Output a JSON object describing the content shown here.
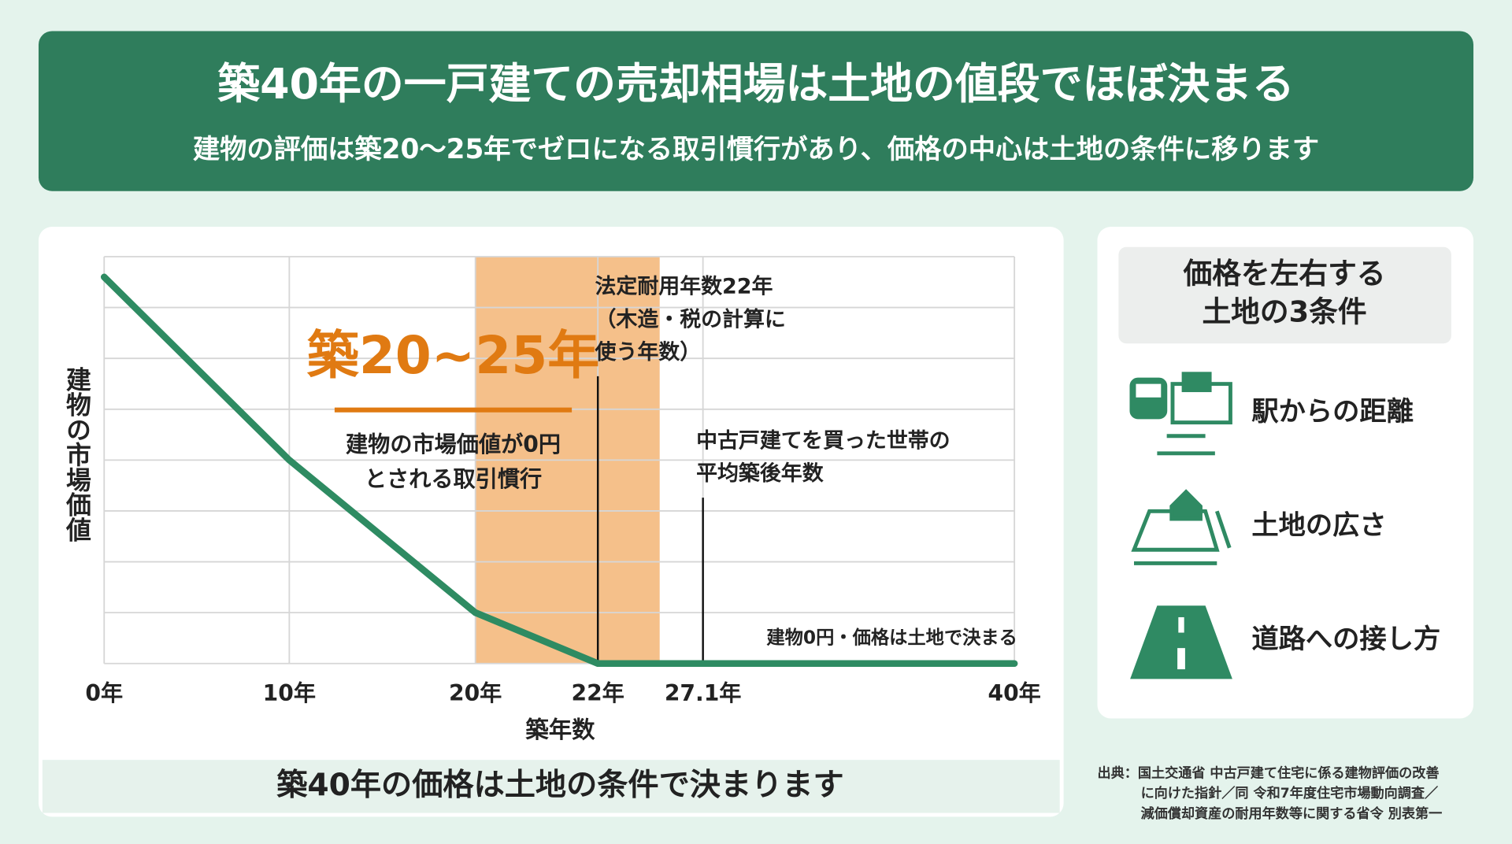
{
  "header": {
    "title": "築40年の一戸建ての売却相場は土地の値段でほぼ決まる",
    "subtitle": "建物の評価は築20〜25年でゼロになる取引慣行があり、価格の中心は土地の条件に移ります"
  },
  "chart_data": {
    "type": "line",
    "y_label": "建物の市場価値",
    "x_label": "築年数",
    "color": "#2e8b62",
    "x": [
      0,
      10,
      20,
      22,
      40
    ],
    "values": [
      7.6,
      4,
      1,
      0,
      0
    ],
    "xlim": [
      0,
      40
    ],
    "ylim": [
      0,
      8
    ],
    "xticks": [
      {
        "value": 0,
        "label": "0年"
      },
      {
        "value": 10,
        "label": "10年"
      },
      {
        "value": 20,
        "label": "20年"
      },
      {
        "value": 22,
        "label": "22年"
      },
      {
        "value": 27.1,
        "label": "27.1年"
      },
      {
        "value": 40,
        "label": "40年"
      }
    ],
    "yticks": [
      0,
      1,
      2,
      3,
      4,
      5,
      6,
      7,
      8
    ],
    "ytick_labels": false,
    "grid": true,
    "highlight": {
      "range": [
        20,
        25
      ],
      "color": "#f5c08a",
      "title": "築20~25年",
      "text": [
        "建物の市場価値が0円",
        "とされる取引慣行"
      ]
    },
    "annotations": [
      {
        "x": 22,
        "text": [
          "法定耐用年数22年",
          "（木造・税の計算に",
          "使う年数）"
        ]
      },
      {
        "x": 27.1,
        "text": [
          "中古戸建てを買った世帯の",
          "平均築後年数"
        ]
      },
      {
        "text": [
          "建物0円・価格は土地で決まる"
        ]
      }
    ],
    "footer": "築40年の価格は土地の条件で決まります"
  },
  "panel": {
    "title": [
      "価格を左右する",
      "土地の3条件"
    ],
    "items": [
      "駅からの距離",
      "土地の広さ",
      "道路への接し方"
    ]
  },
  "source": [
    "出典：国土交通省 中古戸建て住宅に係る建物評価の改善",
    "に向けた指針／同 令和7年度住宅市場動向調査／",
    "減価償却資産の耐用年数等に関する省令 別表第一"
  ]
}
